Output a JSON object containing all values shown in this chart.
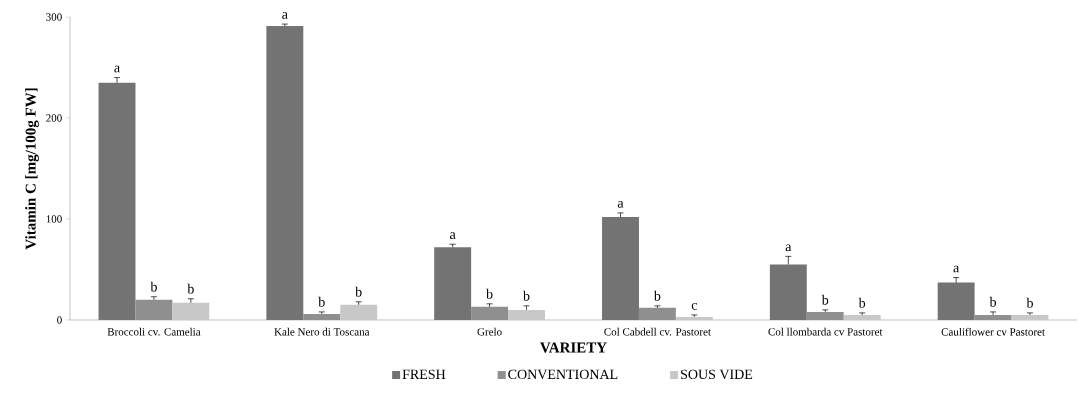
{
  "chart_data": {
    "type": "bar",
    "xlabel": "VARIETY",
    "ylabel": "Vitamin C [mg/100g FW]",
    "categories": [
      "Broccoli cv. Camelia",
      "Kale Nero di Toscana",
      "Grelo",
      "Col Cabdell cv. Pastoret",
      "Col llombarda cv Pastoret",
      "Cauliflower cv Pastoret"
    ],
    "series": [
      {
        "name": "FRESH",
        "color": "#737373",
        "values": [
          235,
          291,
          72,
          102,
          55,
          37
        ],
        "errors": [
          5,
          2,
          3,
          4,
          8,
          5
        ],
        "value_labels": [
          "a",
          "a",
          "a",
          "a",
          "a",
          "a"
        ]
      },
      {
        "name": "CONVENTIONAL",
        "color": "#8f8f8f",
        "values": [
          20,
          6,
          13,
          12,
          8,
          5
        ],
        "errors": [
          3,
          2,
          3,
          2,
          2,
          3
        ],
        "value_labels": [
          "b",
          "b",
          "b",
          "b",
          "b",
          "b"
        ]
      },
      {
        "name": "SOUS VIDE",
        "color": "#c8c8c8",
        "values": [
          17,
          15,
          10,
          3,
          5,
          5
        ],
        "errors": [
          4,
          3,
          4,
          2,
          2,
          2
        ],
        "value_labels": [
          "b",
          "b",
          "b",
          "c",
          "b",
          "b"
        ]
      }
    ],
    "ylim": [
      0,
      300
    ],
    "yticks": [
      0,
      100,
      200,
      300
    ],
    "legend": "bottom"
  }
}
